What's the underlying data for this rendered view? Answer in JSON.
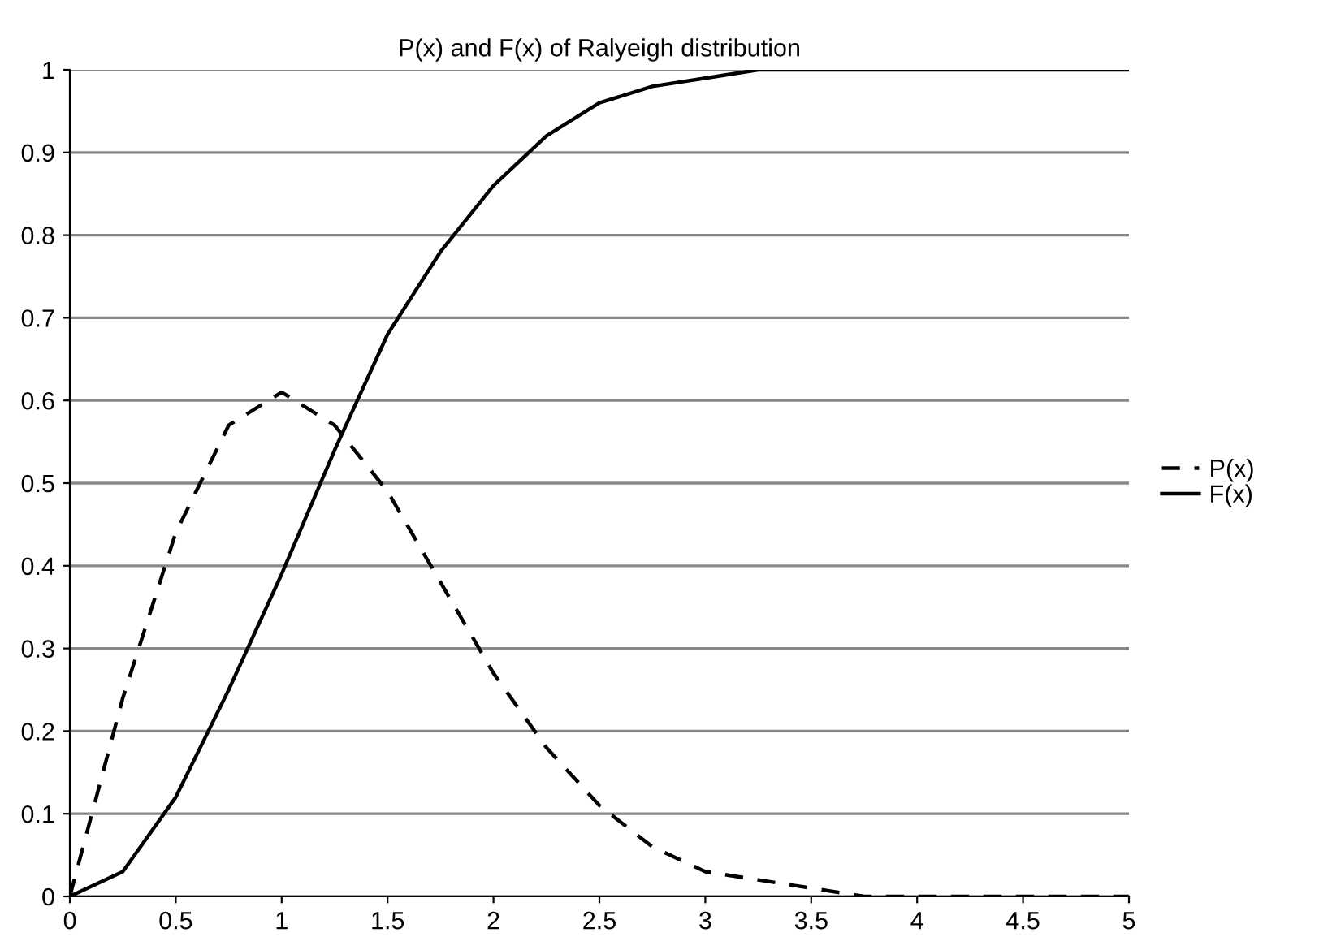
{
  "chart_data": {
    "type": "line",
    "title": "P(x) and F(x) of Ralyeigh distribution",
    "x": [
      0,
      0.25,
      0.5,
      0.75,
      1,
      1.25,
      1.5,
      1.75,
      2,
      2.25,
      2.5,
      2.75,
      3,
      3.25,
      3.5,
      3.75,
      4,
      4.25,
      4.5,
      4.75,
      5
    ],
    "series": [
      {
        "name": "P(x)",
        "color": "#000000",
        "line_style": "dashed",
        "values": [
          0,
          0.24,
          0.44,
          0.57,
          0.61,
          0.57,
          0.49,
          0.38,
          0.27,
          0.18,
          0.11,
          0.06,
          0.03,
          0.02,
          0.01,
          0,
          0,
          0,
          0,
          0,
          0
        ]
      },
      {
        "name": "F(x)",
        "color": "#000000",
        "line_style": "solid",
        "values": [
          0,
          0.03,
          0.12,
          0.25,
          0.39,
          0.54,
          0.68,
          0.78,
          0.86,
          0.92,
          0.96,
          0.98,
          0.99,
          1,
          1,
          1,
          1,
          1,
          1,
          1,
          1
        ]
      }
    ],
    "xlim": [
      0,
      5
    ],
    "xticks": [
      0,
      0.5,
      1,
      1.5,
      2,
      2.5,
      3,
      3.5,
      4,
      4.5,
      5
    ],
    "ylim": [
      0,
      1
    ],
    "yticks": [
      0,
      0.1,
      0.2,
      0.3,
      0.4,
      0.5,
      0.6,
      0.7,
      0.8,
      0.9,
      1
    ],
    "grid": "y",
    "legend": "right",
    "marker": "none"
  }
}
